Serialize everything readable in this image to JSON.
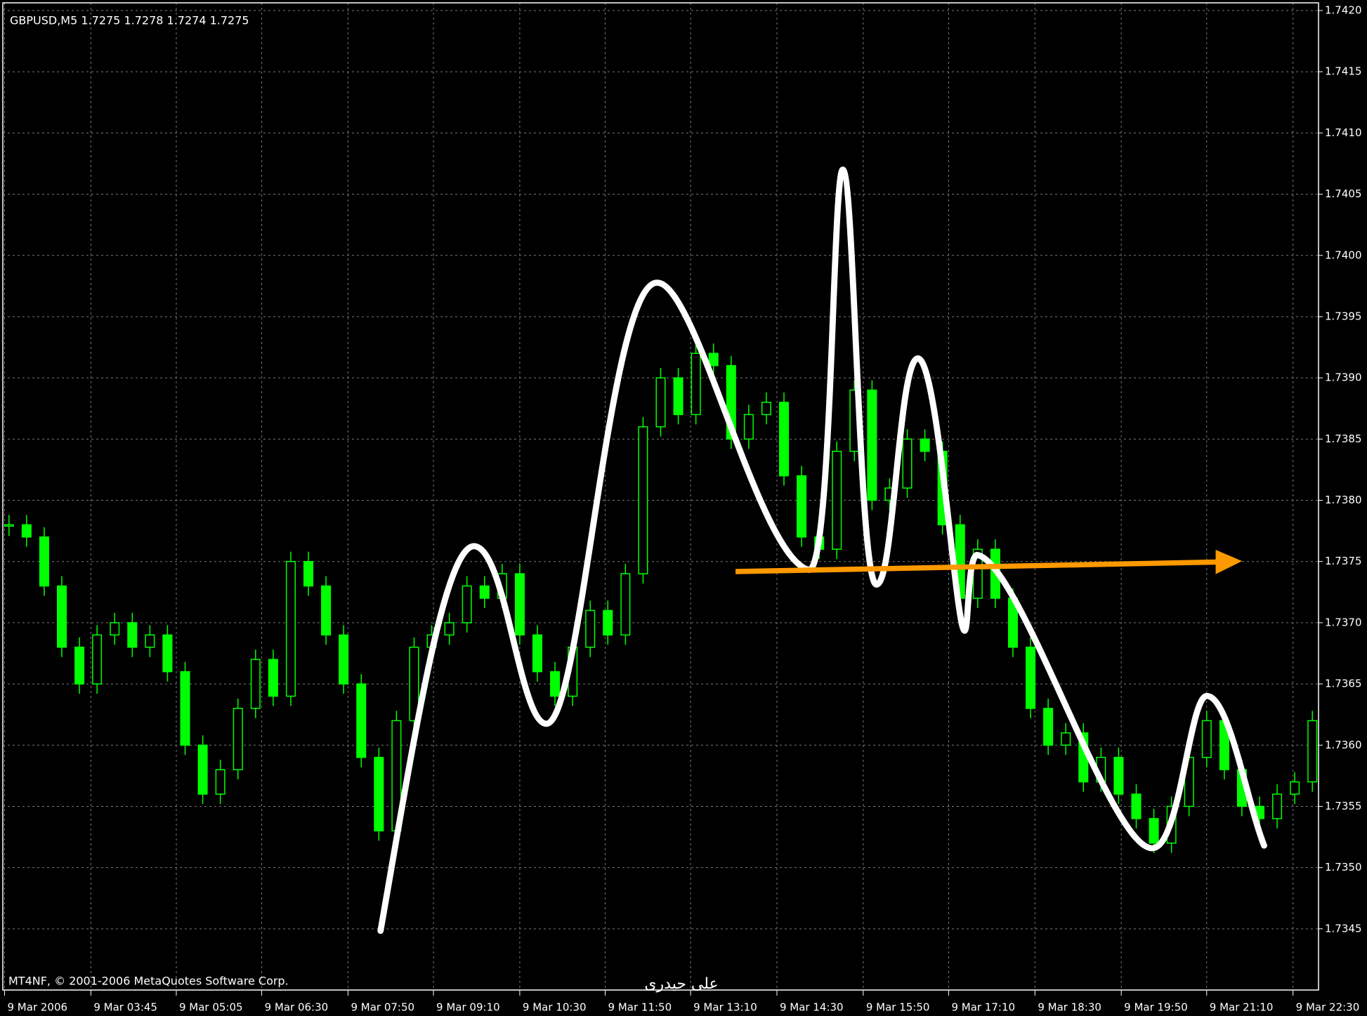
{
  "chart_data": {
    "type": "candlestick",
    "title": "GBPUSD,M5  1.7275 1.7278 1.7274 1.7275",
    "copyright": "MT4NF, © 2001-2006 MetaQuotes Software Corp.",
    "author": "علی حیدری",
    "color": "#00ff00",
    "grid": true,
    "values": [
      1.7378,
      1.7377,
      1.7373,
      1.7368,
      1.7365,
      1.7369,
      1.737,
      1.7368,
      1.7369,
      1.7366,
      1.736,
      1.7356,
      1.7358,
      1.7363,
      1.7367,
      1.7364,
      1.7375,
      1.7373,
      1.7369,
      1.7365,
      1.7359,
      1.7353,
      1.7362,
      1.7368,
      1.7369,
      1.737,
      1.7373,
      1.7372,
      1.7374,
      1.7369,
      1.7366,
      1.7364,
      1.7368,
      1.7371,
      1.7369,
      1.7374,
      1.7386,
      1.739,
      1.7387,
      1.7392,
      1.7391,
      1.7385,
      1.7387,
      1.7388,
      1.7382,
      1.7377,
      1.7376,
      1.7384,
      1.7389,
      1.738,
      1.7381,
      1.7385,
      1.7384,
      1.7378,
      1.7372,
      1.7376,
      1.7372,
      1.7368,
      1.7363,
      1.736,
      1.7361,
      1.7357,
      1.7359,
      1.7356,
      1.7354,
      1.7352,
      1.7355,
      1.7359,
      1.7362,
      1.7358,
      1.7355,
      1.7354,
      1.7356,
      1.7357,
      1.7362
    ],
    "xlim": [
      -0.35,
      74.35
    ],
    "xticks": [
      {
        "value": -0.25,
        "label": "9 Mar 2006"
      },
      {
        "value": 4.65,
        "label": "9 Mar 03:45"
      },
      {
        "value": 9.5,
        "label": "9 Mar 05:05"
      },
      {
        "value": 14.35,
        "label": "9 Mar 06:30"
      },
      {
        "value": 19.25,
        "label": "9 Mar 07:50"
      },
      {
        "value": 24.1,
        "label": "9 Mar 09:10"
      },
      {
        "value": 29,
        "label": "9 Mar 10:30"
      },
      {
        "value": 33.85,
        "label": "9 Mar 11:50"
      },
      {
        "value": 38.7,
        "label": "9 Mar 13:10"
      },
      {
        "value": 43.6,
        "label": "9 Mar 14:30"
      },
      {
        "value": 48.5,
        "label": "9 Mar 15:50"
      },
      {
        "value": 53.35,
        "label": "9 Mar 17:10"
      },
      {
        "value": 58.25,
        "label": "9 Mar 18:30"
      },
      {
        "value": 63.15,
        "label": "9 Mar 19:50"
      },
      {
        "value": 68,
        "label": "9 Mar 21:10"
      },
      {
        "value": 72.9,
        "label": "9 Mar 22:30"
      }
    ],
    "ylim": [
      1.734,
      1.742
    ],
    "yticks": [
      {
        "value": 1.742,
        "label": "1.7420"
      },
      {
        "value": 1.7415,
        "label": "1.7415"
      },
      {
        "value": 1.741,
        "label": "1.7410"
      },
      {
        "value": 1.7405,
        "label": "1.7405"
      },
      {
        "value": 1.74,
        "label": "1.7400"
      },
      {
        "value": 1.7395,
        "label": "1.7395"
      },
      {
        "value": 1.739,
        "label": "1.7390"
      },
      {
        "value": 1.7385,
        "label": "1.7385"
      },
      {
        "value": 1.738,
        "label": "1.7380"
      },
      {
        "value": 1.7375,
        "label": "1.7375"
      },
      {
        "value": 1.737,
        "label": "1.7370"
      },
      {
        "value": 1.7365,
        "label": "1.7365"
      },
      {
        "value": 1.736,
        "label": "1.7360"
      },
      {
        "value": 1.7355,
        "label": "1.7355"
      },
      {
        "value": 1.735,
        "label": "1.7350"
      },
      {
        "value": 1.7345,
        "label": "1.7345"
      }
    ]
  }
}
